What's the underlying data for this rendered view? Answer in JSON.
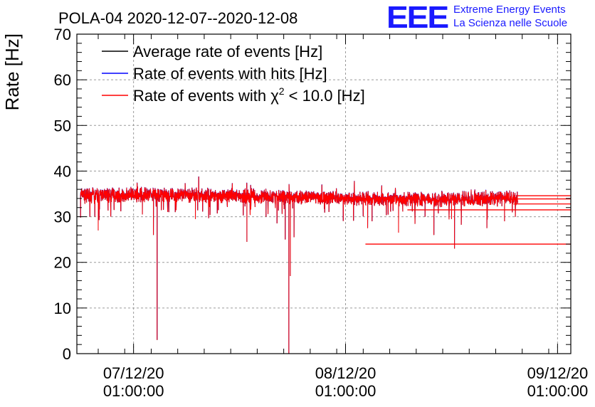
{
  "header": {
    "title": "POLA-04 2020-12-07--2020-12-08",
    "logo_mark": "EEE",
    "logo_line1": "Extreme Energy Events",
    "logo_line2": "La Scienza nelle Scuole"
  },
  "colors": {
    "average": "#000000",
    "hits": "#0000ff",
    "chi2": "#ff0000",
    "logo": "#1a1aff",
    "grid": "#9a9a9a"
  },
  "chart_data": {
    "type": "line",
    "title": "POLA-04 2020-12-07--2020-12-08",
    "xlabel": "",
    "ylabel": "Rate [Hz]",
    "ylim": [
      0,
      70
    ],
    "yticks": [
      0,
      10,
      20,
      30,
      40,
      50,
      60,
      70
    ],
    "xlim": [
      "2020-12-06 18:35",
      "2020-12-09 02:30"
    ],
    "xticks": [
      {
        "line1": "07/12/20",
        "line2": "01:00:00",
        "t": "2020-12-07 01:00"
      },
      {
        "line1": "08/12/20",
        "line2": "01:00:00",
        "t": "2020-12-08 01:00"
      },
      {
        "line1": "09/12/20",
        "line2": "01:00:00",
        "t": "2020-12-09 01:00"
      }
    ],
    "grid": true,
    "legend_position": "top-left",
    "legend": [
      {
        "key": "average",
        "label": "Average rate of events [Hz]"
      },
      {
        "key": "hits",
        "label": "Rate of events with hits [Hz]"
      },
      {
        "key": "chi2",
        "label_prefix": "Rate of events with χ",
        "label_sup": "2",
        "label_suffix": " < 10.0 [Hz]"
      }
    ],
    "series": [
      {
        "name": "Rate of events with χ2 < 10.0 [Hz]",
        "baseline": [
          {
            "t": "2020-12-06 19:00",
            "y": 34.7
          },
          {
            "t": "2020-12-07 04:00",
            "y": 34.8
          },
          {
            "t": "2020-12-07 12:00",
            "y": 34.6
          },
          {
            "t": "2020-12-08 00:00",
            "y": 34.0
          },
          {
            "t": "2020-12-08 08:00",
            "y": 33.8
          },
          {
            "t": "2020-12-08 16:00",
            "y": 33.9
          },
          {
            "t": "2020-12-08 20:30",
            "y": 34.1
          }
        ],
        "dips": [
          {
            "t": "2020-12-06 19:00",
            "y": 29.8
          },
          {
            "t": "2020-12-06 21:00",
            "y": 27.0
          },
          {
            "t": "2020-12-07 02:00",
            "y": 30.5
          },
          {
            "t": "2020-12-07 03:15",
            "y": 26.0
          },
          {
            "t": "2020-12-07 03:40",
            "y": 3.0
          },
          {
            "t": "2020-12-07 05:00",
            "y": 31.0
          },
          {
            "t": "2020-12-07 08:00",
            "y": 29.5
          },
          {
            "t": "2020-12-07 13:50",
            "y": 24.5
          },
          {
            "t": "2020-12-07 16:00",
            "y": 30.0
          },
          {
            "t": "2020-12-07 18:10",
            "y": 25.0
          },
          {
            "t": "2020-12-07 18:35",
            "y": 0.0
          },
          {
            "t": "2020-12-07 18:45",
            "y": 17.0
          },
          {
            "t": "2020-12-07 19:10",
            "y": 25.5
          },
          {
            "t": "2020-12-08 03:30",
            "y": 27.5
          },
          {
            "t": "2020-12-08 04:00",
            "y": 29.0
          },
          {
            "t": "2020-12-08 07:00",
            "y": 26.5
          },
          {
            "t": "2020-12-08 10:00",
            "y": 30.0
          },
          {
            "t": "2020-12-08 11:00",
            "y": 26.0
          },
          {
            "t": "2020-12-08 13:00",
            "y": 29.5
          },
          {
            "t": "2020-12-08 13:20",
            "y": 23.0
          },
          {
            "t": "2020-12-08 17:00",
            "y": 27.5
          },
          {
            "t": "2020-12-08 19:00",
            "y": 29.0
          }
        ],
        "gap_segments": [
          {
            "from": "2020-12-08 03:15",
            "to": "2020-12-09 02:30",
            "y": 24.0
          },
          {
            "from": "2020-12-08 08:00",
            "to": "2020-12-09 02:30",
            "y": 31.5
          },
          {
            "from": "2020-12-08 20:00",
            "to": "2020-12-09 02:30",
            "y": 32.8
          },
          {
            "from": "2020-12-08 20:30",
            "to": "2020-12-09 02:30",
            "y": 33.9
          },
          {
            "from": "2020-12-08 20:30",
            "to": "2020-12-09 02:30",
            "y": 34.6
          }
        ]
      }
    ]
  }
}
